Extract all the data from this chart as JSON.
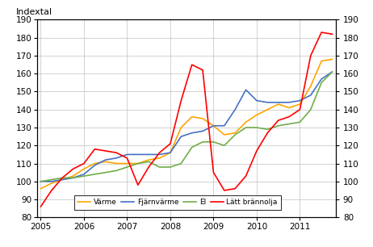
{
  "ylabel_left": "Indextal",
  "ylim": [
    80,
    190
  ],
  "yticks": [
    80,
    90,
    100,
    110,
    120,
    130,
    140,
    150,
    160,
    170,
    180,
    190
  ],
  "xlim": [
    2004.92,
    2011.83
  ],
  "xticks": [
    2005,
    2006,
    2007,
    2008,
    2009,
    2010,
    2011
  ],
  "series": {
    "Värme": {
      "color": "#FFA500",
      "x": [
        2005.0,
        2005.25,
        2005.5,
        2005.75,
        2006.0,
        2006.25,
        2006.5,
        2006.75,
        2007.0,
        2007.25,
        2007.5,
        2007.75,
        2008.0,
        2008.25,
        2008.5,
        2008.75,
        2009.0,
        2009.25,
        2009.5,
        2009.75,
        2010.0,
        2010.25,
        2010.5,
        2010.75,
        2011.0,
        2011.25,
        2011.5,
        2011.75
      ],
      "y": [
        96,
        99,
        101,
        103,
        107,
        110,
        111,
        110,
        110,
        110,
        112,
        113,
        116,
        130,
        136,
        135,
        131,
        126,
        127,
        133,
        137,
        140,
        143,
        141,
        143,
        153,
        167,
        168
      ]
    },
    "Fjärnvärme": {
      "color": "#4472C4",
      "x": [
        2005.0,
        2005.25,
        2005.5,
        2005.75,
        2006.0,
        2006.25,
        2006.5,
        2006.75,
        2007.0,
        2007.25,
        2007.5,
        2007.75,
        2008.0,
        2008.25,
        2008.5,
        2008.75,
        2009.0,
        2009.25,
        2009.5,
        2009.75,
        2010.0,
        2010.25,
        2010.5,
        2010.75,
        2011.0,
        2011.25,
        2011.5,
        2011.75
      ],
      "y": [
        100,
        100,
        101,
        102,
        104,
        109,
        112,
        113,
        115,
        115,
        115,
        115,
        116,
        125,
        127,
        128,
        131,
        131,
        140,
        151,
        145,
        144,
        144,
        144,
        145,
        148,
        157,
        161
      ]
    },
    "El": {
      "color": "#70AD47",
      "x": [
        2005.0,
        2005.25,
        2005.5,
        2005.75,
        2006.0,
        2006.25,
        2006.5,
        2006.75,
        2007.0,
        2007.25,
        2007.5,
        2007.75,
        2008.0,
        2008.25,
        2008.5,
        2008.75,
        2009.0,
        2009.25,
        2009.5,
        2009.75,
        2010.0,
        2010.25,
        2010.5,
        2010.75,
        2011.0,
        2011.25,
        2011.5,
        2011.75
      ],
      "y": [
        100,
        101,
        102,
        102,
        103,
        104,
        105,
        106,
        108,
        110,
        111,
        108,
        108,
        110,
        119,
        122,
        122,
        120,
        126,
        130,
        130,
        129,
        131,
        132,
        133,
        140,
        155,
        161
      ]
    },
    "Lätt brännolja": {
      "color": "#FF0000",
      "x": [
        2005.0,
        2005.25,
        2005.5,
        2005.75,
        2006.0,
        2006.25,
        2006.5,
        2006.75,
        2007.0,
        2007.25,
        2007.5,
        2007.75,
        2008.0,
        2008.25,
        2008.5,
        2008.75,
        2009.0,
        2009.25,
        2009.5,
        2009.75,
        2010.0,
        2010.25,
        2010.5,
        2010.75,
        2011.0,
        2011.25,
        2011.5,
        2011.75
      ],
      "y": [
        86,
        95,
        102,
        107,
        110,
        118,
        117,
        116,
        113,
        98,
        108,
        116,
        121,
        145,
        165,
        162,
        105,
        95,
        96,
        103,
        117,
        127,
        134,
        136,
        140,
        170,
        183,
        182
      ]
    }
  },
  "legend_order": [
    "Värme",
    "Fjärnvärme",
    "El",
    "Lätt brännolja"
  ],
  "background_color": "#FFFFFF",
  "grid_color": "#C0C0C0"
}
